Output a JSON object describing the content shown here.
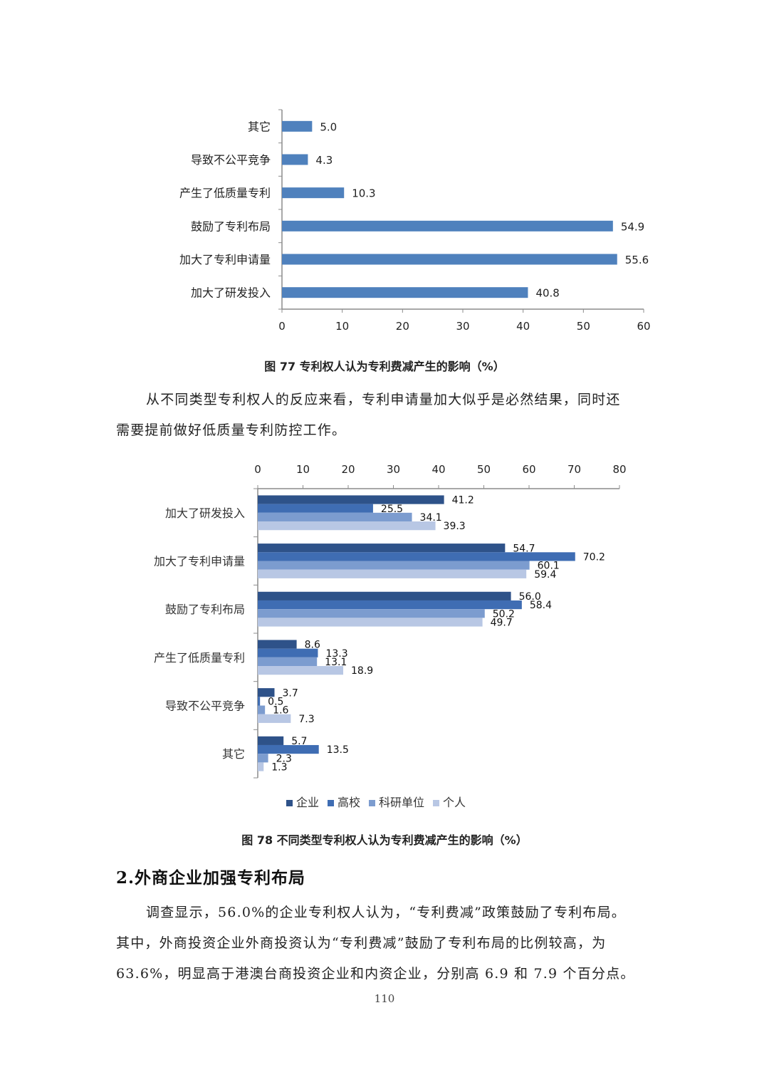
{
  "chart_data": [
    {
      "type": "bar",
      "orientation": "horizontal",
      "categories": [
        "其它",
        "导致不公平竞争",
        "产生了低质量专利",
        "鼓励了专利布局",
        "加大了专利申请量",
        "加大了研发投入"
      ],
      "values": [
        5.0,
        4.3,
        10.3,
        54.9,
        55.6,
        40.8
      ],
      "value_labels": [
        "5.0",
        "4.3",
        "10.3",
        "54.9",
        "55.6",
        "40.8"
      ],
      "xlim": [
        0,
        60
      ],
      "xticks": [
        "0",
        "10",
        "20",
        "30",
        "40",
        "50",
        "60"
      ],
      "color": "#4f81bd",
      "title": "图 77  专利权人认为专利费减产生的影响（%）"
    },
    {
      "type": "bar",
      "orientation": "horizontal",
      "grouped": true,
      "categories": [
        "加大了研发投入",
        "加大了专利申请量",
        "鼓励了专利布局",
        "产生了低质量专利",
        "导致不公平竞争",
        "其它"
      ],
      "series": [
        {
          "name": "企业",
          "color": "#2e5289",
          "values": [
            41.2,
            54.7,
            56.0,
            8.6,
            3.7,
            5.7
          ],
          "labels": [
            "41.2",
            "54.7",
            "56.0",
            "8.6",
            "3.7",
            "5.7"
          ]
        },
        {
          "name": "高校",
          "color": "#3f6db3",
          "values": [
            25.5,
            70.2,
            58.4,
            13.3,
            0.5,
            13.5
          ],
          "labels": [
            "25.5",
            "70.2",
            "58.4",
            "13.3",
            "0.5",
            "13.5"
          ]
        },
        {
          "name": "科研单位",
          "color": "#7c9ccf",
          "values": [
            34.1,
            60.1,
            50.2,
            13.1,
            1.6,
            2.3
          ],
          "labels": [
            "34.1",
            "60.1",
            "50.2",
            "13.1",
            "1.6",
            "2.3"
          ]
        },
        {
          "name": "个人",
          "color": "#b8c7e4",
          "values": [
            39.3,
            59.4,
            49.7,
            18.9,
            7.3,
            1.3
          ],
          "labels": [
            "39.3",
            "59.4",
            "49.7",
            "18.9",
            "7.3",
            "1.3"
          ]
        }
      ],
      "xlim": [
        0,
        80
      ],
      "xticks": [
        "0",
        "10",
        "20",
        "30",
        "40",
        "50",
        "60",
        "70",
        "80"
      ],
      "axis_position": "top",
      "legend": "bottom",
      "title": "图 78  不同类型专利权人认为专利费减产生的影响（%）"
    }
  ],
  "text": {
    "caption1": "图 77  专利权人认为专利费减产生的影响（%）",
    "para1_line1": "从不同类型专利权人的反应来看，专利申请量加大似乎是必然结果，同时还",
    "para1_line2": "需要提前做好低质量专利防控工作。",
    "caption2": "图 78  不同类型专利权人认为专利费减产生的影响（%）",
    "heading": "2.外商企业加强专利布局",
    "para2_line1": "调查显示，56.0%的企业专利权人认为，“专利费减”政策鼓励了专利布局。",
    "para2_line2": "其中，外商投资企业外商投资认为“专利费减”鼓励了专利布局的比例较高，为",
    "para2_line3": "63.6%，明显高于港澳台商投资企业和内资企业，分别高 6.9 和 7.9 个百分点。",
    "page_number": "110"
  }
}
